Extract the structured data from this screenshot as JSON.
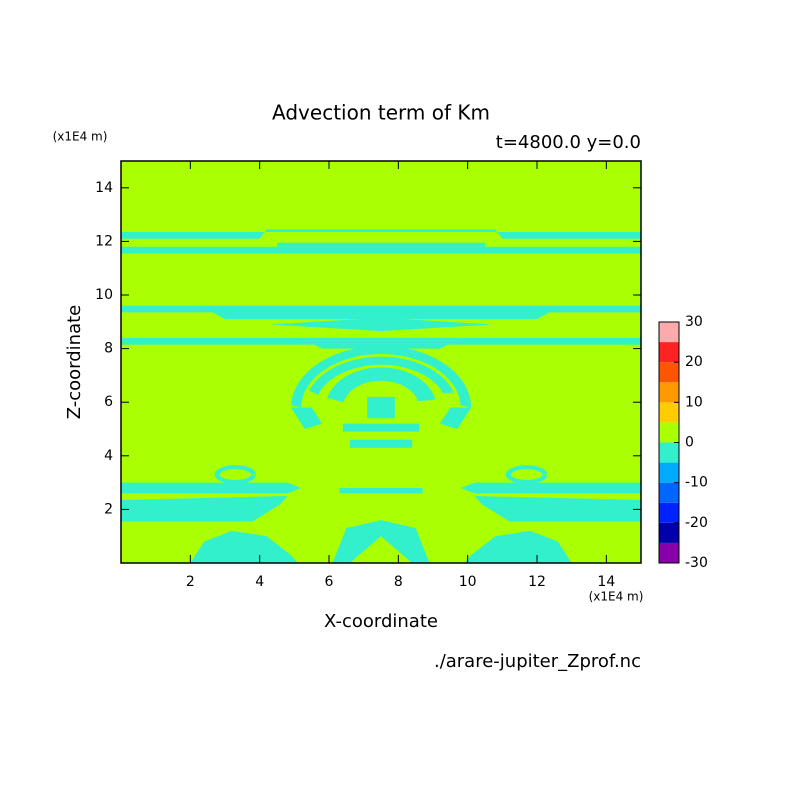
{
  "chart_data": {
    "type": "contour",
    "title": "Advection term of Km",
    "subtitle": "t=4800.0 y=0.0",
    "x_unit": "(x1E4 m)",
    "y_unit": "(x1E4 m)",
    "xlabel": "X-coordinate",
    "ylabel": "Z-coordinate",
    "source": "./arare-jupiter_Zprof.nc",
    "xlim": [
      0,
      15
    ],
    "ylim": [
      0,
      15
    ],
    "xticks": [
      2,
      4,
      6,
      8,
      10,
      12,
      14
    ],
    "yticks": [
      2,
      4,
      6,
      8,
      10,
      12,
      14
    ],
    "levels": [
      -30,
      -25,
      -20,
      -15,
      -10,
      -5,
      0,
      5,
      10,
      15,
      20,
      25,
      30
    ],
    "colors": [
      "#8800aa",
      "#0000aa",
      "#0022ff",
      "#0066ff",
      "#00aaff",
      "#33f0cc",
      "#aaff00",
      "#ffcc00",
      "#ff9900",
      "#ff5500",
      "#ff2222",
      "#ffaaaa"
    ],
    "colorbar_ticks": [
      -30,
      -20,
      -10,
      0,
      10,
      20,
      30
    ]
  }
}
